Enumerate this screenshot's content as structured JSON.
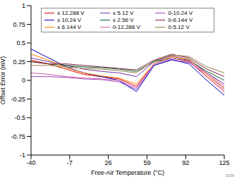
{
  "chart_data": {
    "type": "line",
    "x_label": "Free-Air Temperature (°C)",
    "y_label": "Offset Error (mV)",
    "x": [
      -40,
      -25,
      -10,
      5,
      20,
      35,
      50,
      65,
      80,
      95,
      110,
      125
    ],
    "xlim": [
      -40,
      125
    ],
    "xticks": [
      -40,
      -7,
      26,
      59,
      92,
      125
    ],
    "ylim": [
      -1,
      1
    ],
    "yticks": [
      -1,
      -0.75,
      -0.5,
      -0.25,
      0,
      0.25,
      0.5,
      0.75,
      1
    ],
    "grid": false,
    "legend": "top",
    "annotations": [
      "D036"
    ],
    "series": [
      {
        "name": "± 12.288 V",
        "color": "#e00000",
        "values": [
          0.27,
          0.22,
          0.15,
          0.08,
          0.05,
          0.02,
          -0.08,
          0.22,
          0.3,
          0.25,
          0.05,
          -0.15
        ]
      },
      {
        "name": "± 5.12 V",
        "color": "#7030a0",
        "values": [
          0.3,
          0.25,
          0.2,
          0.15,
          0.12,
          0.1,
          0.05,
          0.25,
          0.33,
          0.28,
          0.1,
          -0.05
        ]
      },
      {
        "name": "0-10.24 V",
        "color": "#a040c0",
        "values": [
          0.05,
          0.05,
          0.04,
          0.02,
          0.01,
          -0.02,
          -0.12,
          0.2,
          0.27,
          0.24,
          0.08,
          -0.12
        ]
      },
      {
        "name": "± 10.24 V",
        "color": "#0000c0",
        "values": [
          0.42,
          0.3,
          0.18,
          0.1,
          0.05,
          0.0,
          -0.15,
          0.2,
          0.28,
          0.22,
          0.0,
          -0.2
        ]
      },
      {
        "name": "± 2.56 V",
        "color": "#006030",
        "values": [
          0.25,
          0.22,
          0.2,
          0.18,
          0.17,
          0.15,
          0.12,
          0.25,
          0.3,
          0.27,
          0.12,
          0.0
        ]
      },
      {
        "name": "0-6.144 V",
        "color": "#802040",
        "values": [
          0.25,
          0.22,
          0.22,
          0.2,
          0.18,
          0.16,
          0.14,
          0.27,
          0.35,
          0.3,
          0.15,
          0.05
        ]
      },
      {
        "name": "± 6.144 V",
        "color": "#ff8000",
        "values": [
          0.35,
          0.27,
          0.17,
          0.1,
          0.06,
          0.03,
          -0.05,
          0.22,
          0.32,
          0.28,
          0.08,
          -0.1
        ]
      },
      {
        "name": "0-12.288 V",
        "color": "#d060b0",
        "values": [
          0.1,
          0.08,
          0.05,
          0.03,
          0.02,
          0.0,
          -0.1,
          0.22,
          0.3,
          0.26,
          0.1,
          -0.08
        ]
      },
      {
        "name": "0-5.12 V",
        "color": "#998040",
        "values": [
          0.2,
          0.2,
          0.18,
          0.16,
          0.15,
          0.13,
          0.1,
          0.26,
          0.34,
          0.32,
          0.18,
          0.1
        ]
      }
    ]
  }
}
